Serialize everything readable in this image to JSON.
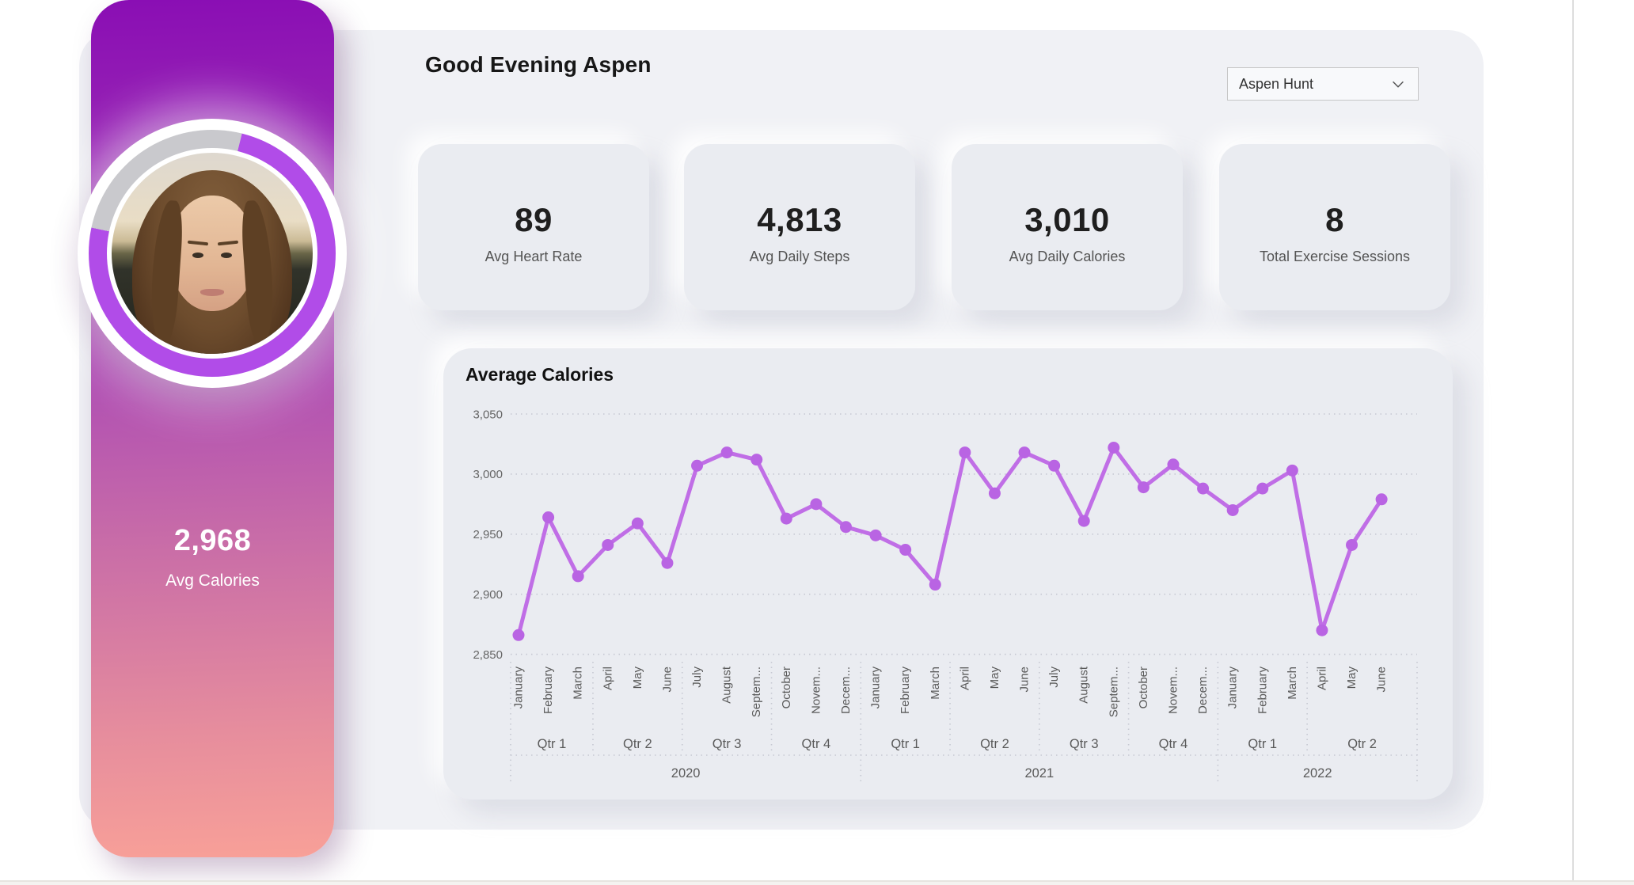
{
  "page": {
    "greeting": "Good Evening Aspen"
  },
  "profile_selector": {
    "value": "Aspen Hunt"
  },
  "sidebar": {
    "stat_value": "2,968",
    "stat_label": "Avg Calories"
  },
  "stat_cards": [
    {
      "value": "89",
      "label": "Avg Heart Rate"
    },
    {
      "value": "4,813",
      "label": "Avg Daily Steps"
    },
    {
      "value": "3,010",
      "label": "Avg Daily Calories"
    },
    {
      "value": "8",
      "label": "Total Exercise Sessions"
    }
  ],
  "chart_data": {
    "type": "line",
    "title": "Average Calories",
    "line_color": "#c06ee6",
    "marker_color": "#b964e3",
    "grid_color": "#c6c8d2",
    "axis_text_color": "#5a5a5a",
    "ylim": [
      2850,
      3050
    ],
    "ytick_values": [
      3050,
      3000,
      2950,
      2900,
      2850
    ],
    "ytick_labels": [
      "3,050",
      "3,000",
      "2,950",
      "2,900",
      "2,850"
    ],
    "legend": "none",
    "grid": "horizontal-dotted",
    "years": [
      {
        "label": "2020",
        "quarters": [
          {
            "label": "Qtr 1",
            "months": [
              "January",
              "February",
              "March"
            ]
          },
          {
            "label": "Qtr 2",
            "months": [
              "April",
              "May",
              "June"
            ]
          },
          {
            "label": "Qtr 3",
            "months": [
              "July",
              "August",
              "Septem..."
            ]
          },
          {
            "label": "Qtr 4",
            "months": [
              "October",
              "Novem...",
              "Decem..."
            ]
          }
        ]
      },
      {
        "label": "2021",
        "quarters": [
          {
            "label": "Qtr 1",
            "months": [
              "January",
              "February",
              "March"
            ]
          },
          {
            "label": "Qtr 2",
            "months": [
              "April",
              "May",
              "June"
            ]
          },
          {
            "label": "Qtr 3",
            "months": [
              "July",
              "August",
              "Septem..."
            ]
          },
          {
            "label": "Qtr 4",
            "months": [
              "October",
              "Novem...",
              "Decem..."
            ]
          }
        ]
      },
      {
        "label": "2022",
        "quarters": [
          {
            "label": "Qtr 1",
            "months": [
              "January",
              "February",
              "March"
            ]
          },
          {
            "label": "Qtr 2",
            "months": [
              "April",
              "May",
              "June"
            ]
          }
        ]
      }
    ],
    "values": [
      2866,
      2964,
      2915,
      2941,
      2959,
      2926,
      3007,
      3018,
      3012,
      2963,
      2975,
      2956,
      2949,
      2937,
      2908,
      3018,
      2984,
      3018,
      3007,
      2961,
      3022,
      2989,
      3008,
      2988,
      2970,
      2988,
      3003,
      2870,
      2941,
      2979
    ]
  }
}
